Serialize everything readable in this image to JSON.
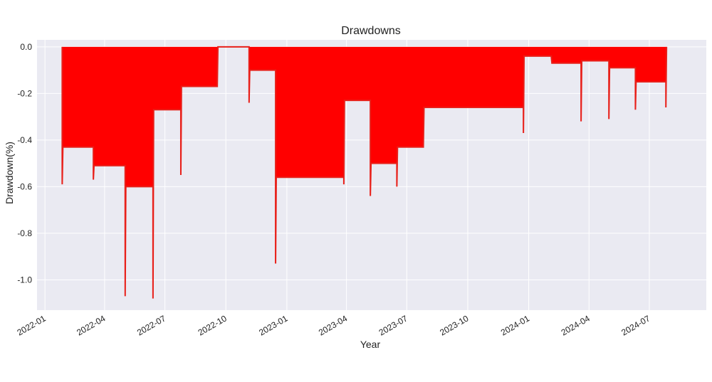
{
  "chart_data": {
    "type": "area",
    "title": "Drawdowns",
    "xlabel": "Year",
    "ylabel": "Drawdown(%)",
    "xlim": [
      "2021-12-20",
      "2024-09-25"
    ],
    "ylim": [
      -1.13,
      0.03
    ],
    "x_ticks": [
      "2022-01",
      "2022-04",
      "2022-07",
      "2022-10",
      "2023-01",
      "2023-04",
      "2023-07",
      "2023-10",
      "2024-01",
      "2024-04",
      "2024-07"
    ],
    "y_ticks": [
      "0.0",
      "-0.2",
      "-0.4",
      "-0.6",
      "-0.8",
      "-1.0"
    ],
    "y_tick_values": [
      0.0,
      -0.2,
      -0.4,
      -0.6,
      -0.8,
      -1.0
    ],
    "grid": true,
    "background_color": "#eaeaf2",
    "fill_color": "#ff0000",
    "line_color": "#e8201a",
    "series": [
      {
        "values": [
          {
            "date": "2022-01-27",
            "value": 0.0
          },
          {
            "date": "2022-01-27",
            "value": -0.59
          },
          {
            "date": "2022-01-28",
            "value": -0.43
          },
          {
            "date": "2022-03-15",
            "value": -0.43
          },
          {
            "date": "2022-03-15",
            "value": -0.57
          },
          {
            "date": "2022-03-16",
            "value": -0.51
          },
          {
            "date": "2022-05-02",
            "value": -0.51
          },
          {
            "date": "2022-05-02",
            "value": -1.07
          },
          {
            "date": "2022-05-03",
            "value": -0.6
          },
          {
            "date": "2022-06-13",
            "value": -0.6
          },
          {
            "date": "2022-06-13",
            "value": -1.08
          },
          {
            "date": "2022-06-14",
            "value": -0.27
          },
          {
            "date": "2022-07-25",
            "value": -0.27
          },
          {
            "date": "2022-07-25",
            "value": -0.55
          },
          {
            "date": "2022-07-26",
            "value": -0.17
          },
          {
            "date": "2022-09-18",
            "value": -0.17
          },
          {
            "date": "2022-09-19",
            "value": 0.0
          },
          {
            "date": "2022-11-05",
            "value": 0.0
          },
          {
            "date": "2022-11-05",
            "value": -0.24
          },
          {
            "date": "2022-11-06",
            "value": -0.1
          },
          {
            "date": "2022-12-15",
            "value": -0.1
          },
          {
            "date": "2022-12-15",
            "value": -0.93
          },
          {
            "date": "2022-12-16",
            "value": -0.56
          },
          {
            "date": "2023-03-28",
            "value": -0.56
          },
          {
            "date": "2023-03-28",
            "value": -0.59
          },
          {
            "date": "2023-03-29",
            "value": -0.23
          },
          {
            "date": "2023-05-07",
            "value": -0.23
          },
          {
            "date": "2023-05-07",
            "value": -0.64
          },
          {
            "date": "2023-05-08",
            "value": -0.5
          },
          {
            "date": "2023-06-16",
            "value": -0.5
          },
          {
            "date": "2023-06-16",
            "value": -0.6
          },
          {
            "date": "2023-06-17",
            "value": -0.43
          },
          {
            "date": "2023-07-26",
            "value": -0.43
          },
          {
            "date": "2023-07-27",
            "value": -0.26
          },
          {
            "date": "2023-12-24",
            "value": -0.26
          },
          {
            "date": "2023-12-24",
            "value": -0.37
          },
          {
            "date": "2023-12-25",
            "value": -0.04
          },
          {
            "date": "2024-02-04",
            "value": -0.04
          },
          {
            "date": "2024-02-05",
            "value": -0.07
          },
          {
            "date": "2024-03-20",
            "value": -0.07
          },
          {
            "date": "2024-03-20",
            "value": -0.32
          },
          {
            "date": "2024-03-21",
            "value": -0.06
          },
          {
            "date": "2024-05-01",
            "value": -0.06
          },
          {
            "date": "2024-05-01",
            "value": -0.31
          },
          {
            "date": "2024-05-02",
            "value": -0.09
          },
          {
            "date": "2024-06-10",
            "value": -0.09
          },
          {
            "date": "2024-06-10",
            "value": -0.27
          },
          {
            "date": "2024-06-11",
            "value": -0.15
          },
          {
            "date": "2024-07-26",
            "value": -0.15
          },
          {
            "date": "2024-07-26",
            "value": -0.26
          },
          {
            "date": "2024-07-27",
            "value": 0.0
          }
        ]
      }
    ]
  }
}
